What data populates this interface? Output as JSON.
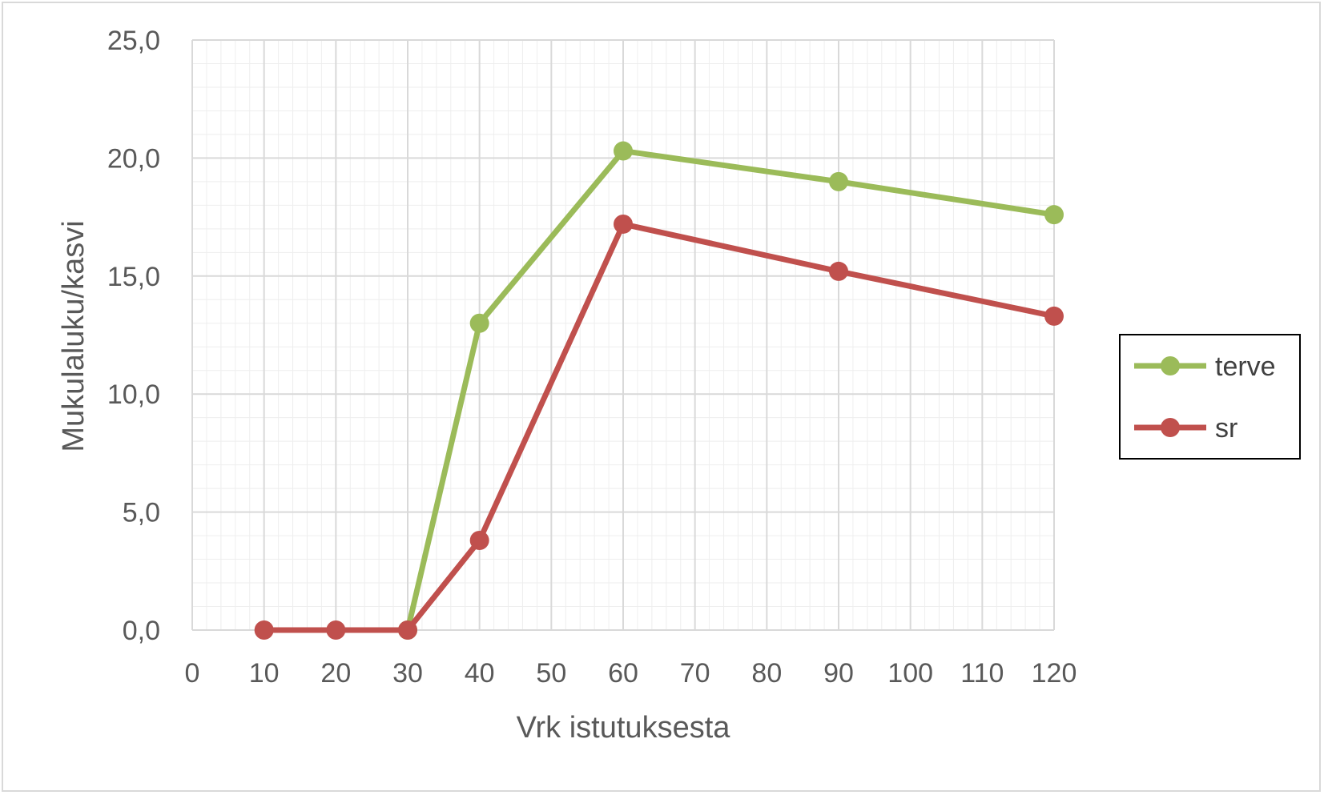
{
  "chart_data": {
    "type": "line",
    "xlabel": "Vrk istutuksesta",
    "ylabel": "Mukulaluku/kasvi",
    "x_ticks": [
      "0",
      "10",
      "20",
      "30",
      "40",
      "50",
      "60",
      "70",
      "80",
      "90",
      "100",
      "110",
      "120"
    ],
    "y_ticks": [
      "0,0",
      "5,0",
      "10,0",
      "15,0",
      "20,0",
      "25,0"
    ],
    "xlim": [
      0,
      120
    ],
    "ylim": [
      0,
      25
    ],
    "grid": true,
    "legend_position": "right",
    "series": [
      {
        "name": "terve",
        "color": "#9bbb59",
        "x": [
          30,
          40,
          60,
          90,
          120
        ],
        "y": [
          0.0,
          13.0,
          20.3,
          19.0,
          17.6
        ]
      },
      {
        "name": "sr",
        "color": "#c0504d",
        "x": [
          10,
          20,
          30,
          40,
          60,
          90,
          120
        ],
        "y": [
          0.0,
          0.0,
          0.0,
          3.8,
          17.2,
          15.2,
          13.3
        ]
      }
    ]
  }
}
